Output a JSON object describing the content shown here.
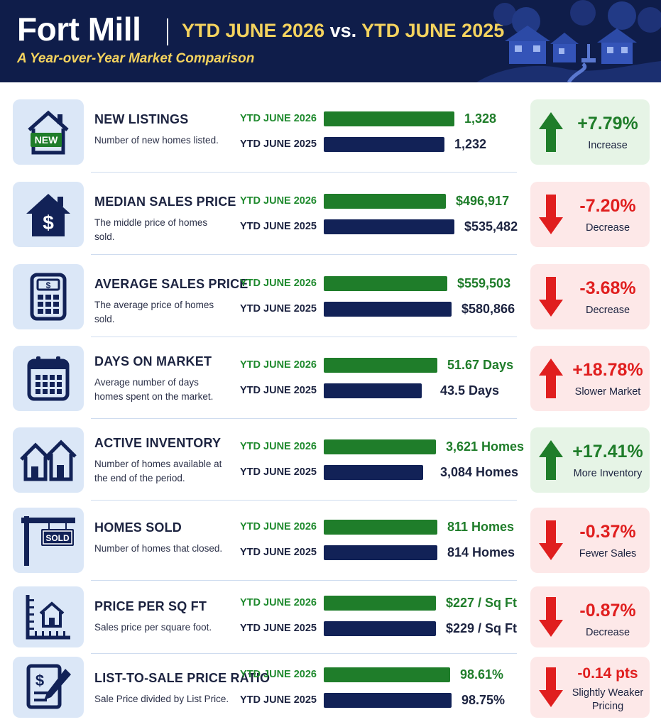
{
  "header": {
    "title": "Fort Mill",
    "compare_current": "YTD JUNE 2026",
    "compare_vs": " vs. ",
    "compare_previous": "YTD JUNE 2025",
    "subtitle": "A Year-over-Year Market Comparison"
  },
  "colors": {
    "navy": "#122257",
    "green": "#1f7d2a",
    "red": "#e01e1e",
    "gold": "#f4d35e",
    "icon_bg": "#dbe7f7"
  },
  "metrics": [
    {
      "title": "NEW LISTINGS",
      "desc": "Number of new homes listed.",
      "icon": "house-new-icon",
      "icon_text": "NEW",
      "label_current": "YTD JUNE 2026",
      "label_previous": "YTD JUNE 2025",
      "value_current": "1,328",
      "value_previous": "1,232",
      "bar_current": 0.92,
      "bar_previous": 0.85,
      "change": "+7.79%",
      "change_label": "Increase",
      "direction": "up",
      "tone": "good"
    },
    {
      "title": "MEDIAN SALES PRICE",
      "desc": "The middle price of homes sold.",
      "icon": "house-dollar-icon",
      "icon_text": "$",
      "label_current": "YTD JUNE 2026",
      "label_previous": "YTD JUNE 2025",
      "value_current": "$496,917",
      "value_previous": "$535,482",
      "bar_current": 0.86,
      "bar_previous": 0.92,
      "change": "-7.20%",
      "change_label": "Decrease",
      "direction": "down",
      "tone": "bad"
    },
    {
      "title": "AVERAGE SALES PRICE",
      "desc": "The average price of homes sold.",
      "icon": "calculator-icon",
      "icon_text": "$",
      "label_current": "YTD JUNE 2026",
      "label_previous": "YTD JUNE 2025",
      "value_current": "$559,503",
      "value_previous": "$580,866",
      "bar_current": 0.87,
      "bar_previous": 0.9,
      "change": "-3.68%",
      "change_label": "Decrease",
      "direction": "down",
      "tone": "bad"
    },
    {
      "title": "DAYS ON MARKET",
      "desc": "Average number of days homes spent on the market.",
      "icon": "calendar-icon",
      "icon_text": "",
      "label_current": "YTD JUNE 2026",
      "label_previous": "YTD JUNE 2025",
      "value_current": "51.67 Days",
      "value_previous": "43.5 Days",
      "bar_current": 0.8,
      "bar_previous": 0.69,
      "change": "+18.78%",
      "change_label": "Slower Market",
      "direction": "up",
      "tone": "bad"
    },
    {
      "title": "ACTIVE INVENTORY",
      "desc": "Number of homes available at the end of the period.",
      "icon": "two-houses-icon",
      "icon_text": "",
      "label_current": "YTD JUNE 2026",
      "label_previous": "YTD JUNE 2025",
      "value_current": "3,621 Homes",
      "value_previous": "3,084 Homes",
      "bar_current": 0.79,
      "bar_previous": 0.7,
      "change": "+17.41%",
      "change_label": "More Inventory",
      "direction": "up",
      "tone": "good"
    },
    {
      "title": "HOMES SOLD",
      "desc": "Number of homes that closed.",
      "icon": "sold-sign-icon",
      "icon_text": "SOLD",
      "label_current": "YTD JUNE 2026",
      "label_previous": "YTD JUNE 2025",
      "value_current": "811 Homes",
      "value_previous": "814 Homes",
      "bar_current": 0.8,
      "bar_previous": 0.8,
      "change": "-0.37%",
      "change_label": "Fewer Sales",
      "direction": "down",
      "tone": "bad"
    },
    {
      "title": "PRICE PER SQ FT",
      "desc": "Sales price per square foot.",
      "icon": "ruler-house-icon",
      "icon_text": "",
      "label_current": "YTD JUNE 2026",
      "label_previous": "YTD JUNE 2025",
      "value_current": "$227 / Sq Ft",
      "value_previous": "$229 / Sq Ft",
      "bar_current": 0.79,
      "bar_previous": 0.79,
      "change": "-0.87%",
      "change_label": "Decrease",
      "direction": "down",
      "tone": "bad"
    },
    {
      "title": "LIST-TO-SALE PRICE RATIO",
      "desc": "Sale Price divided by List Price.",
      "icon": "document-pen-icon",
      "icon_text": "$",
      "label_current": "YTD JUNE 2026",
      "label_previous": "YTD JUNE 2025",
      "value_current": "98.61%",
      "value_previous": "98.75%",
      "bar_current": 0.89,
      "bar_previous": 0.9,
      "change": "-0.14 pts",
      "change_label": "Slightly Weaker Pricing",
      "direction": "down",
      "tone": "bad"
    }
  ]
}
